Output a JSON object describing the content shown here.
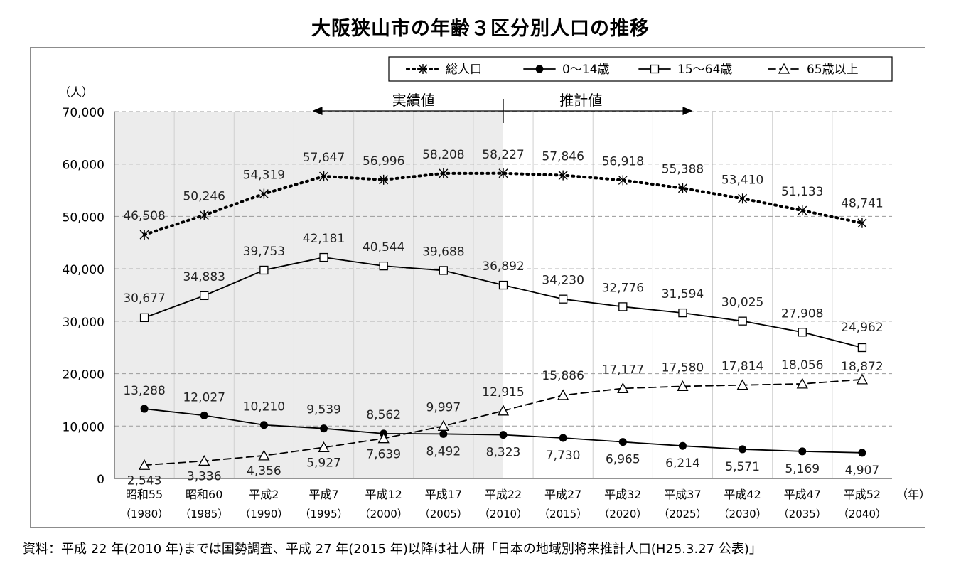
{
  "chart_data": {
    "type": "line",
    "title": "大阪狭山市の年齢３区分別人口の推移",
    "y_unit": "（人）",
    "x_unit": "（年）",
    "ylim": [
      0,
      70000
    ],
    "yticks": [
      "0",
      "10,000",
      "20,000",
      "30,000",
      "40,000",
      "50,000",
      "60,000",
      "70,000"
    ],
    "grid": "horizontal dashed",
    "legend_position": "top-right",
    "categories": [
      "昭和55",
      "昭和60",
      "平成2",
      "平成7",
      "平成12",
      "平成17",
      "平成22",
      "平成27",
      "平成32",
      "平成37",
      "平成42",
      "平成47",
      "平成52"
    ],
    "years": [
      "（1980）",
      "（1985）",
      "（1990）",
      "（1995）",
      "（2000）",
      "（2005）",
      "（2010）",
      "（2015）",
      "（2020）",
      "（2025）",
      "（2030）",
      "（2035）",
      "（2040）"
    ],
    "periods": {
      "actual_label": "実績値",
      "estimate_label": "推計値"
    },
    "series": [
      {
        "name": "総人口",
        "marker": "asterisk",
        "line": "dotted",
        "values": [
          46508,
          50246,
          54319,
          57647,
          56996,
          58208,
          58227,
          57846,
          56918,
          55388,
          53410,
          51133,
          48741
        ],
        "labels": [
          "46,508",
          "50,246",
          "54,319",
          "57,647",
          "56,996",
          "58,208",
          "58,227",
          "57,846",
          "56,918",
          "55,388",
          "53,410",
          "51,133",
          "48,741"
        ]
      },
      {
        "name": "0～14歳",
        "marker": "filled-circle",
        "line": "solid",
        "values": [
          13288,
          12027,
          10210,
          9539,
          8562,
          8492,
          8323,
          7730,
          6965,
          6214,
          5571,
          5169,
          4907
        ],
        "labels": [
          "13,288",
          "12,027",
          "10,210",
          "9,539",
          "8,562",
          "8,492",
          "8,323",
          "7,730",
          "6,965",
          "6,214",
          "5,571",
          "5,169",
          "4,907"
        ]
      },
      {
        "name": "15～64歳",
        "marker": "open-square",
        "line": "solid",
        "values": [
          30677,
          34883,
          39753,
          42181,
          40544,
          39688,
          36892,
          34230,
          32776,
          31594,
          30025,
          27908,
          24962
        ],
        "labels": [
          "30,677",
          "34,883",
          "39,753",
          "42,181",
          "40,544",
          "39,688",
          "36,892",
          "34,230",
          "32,776",
          "31,594",
          "30,025",
          "27,908",
          "24,962"
        ]
      },
      {
        "name": "65歳以上",
        "marker": "open-triangle",
        "line": "dashed",
        "values": [
          2543,
          3336,
          4356,
          5927,
          7639,
          9997,
          12915,
          15886,
          17177,
          17580,
          17814,
          18056,
          18872
        ],
        "labels": [
          "2,543",
          "3,336",
          "4,356",
          "5,927",
          "7,639",
          "9,997",
          "12,915",
          "15,886",
          "17,177",
          "17,580",
          "17,814",
          "18,056",
          "18,872"
        ]
      }
    ],
    "source": "資料：平成 22 年(2010 年)までは国勢調査、平成 27 年(2015 年)以降は社人研「日本の地域別将来推計人口(H25.3.27 公表)」"
  }
}
